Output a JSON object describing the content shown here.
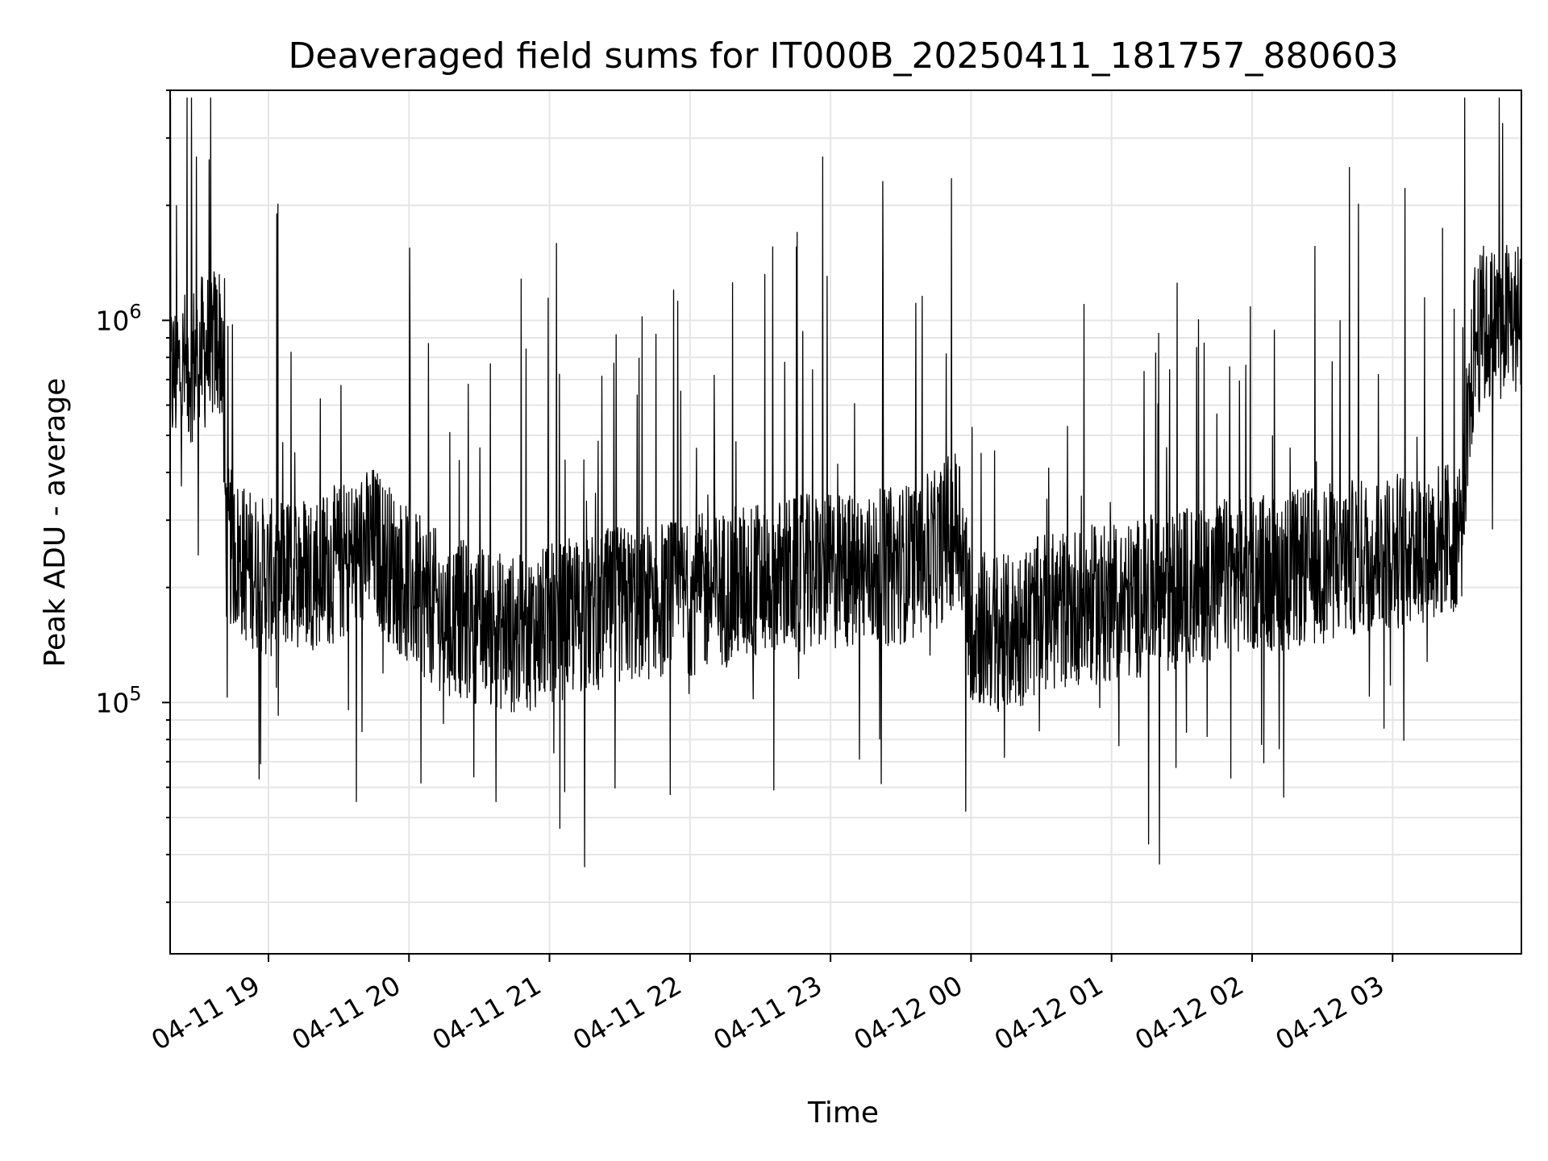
{
  "chart_data": {
    "type": "line",
    "title": "Deaveraged field sums for IT000B_20250411_181757_880603",
    "xlabel": "Time",
    "ylabel": "Peak ADU - average",
    "yscale": "log",
    "ylim": [
      22000,
      4000000
    ],
    "xlim": [
      "2025-04-11 18:18",
      "2025-04-12 03:55"
    ],
    "x_tick_labels": [
      "04-11 19",
      "04-11 20",
      "04-11 21",
      "04-11 22",
      "04-11 23",
      "04-12 00",
      "04-12 01",
      "04-12 02",
      "04-12 03"
    ],
    "y_tick_labels": [
      {
        "base": "10",
        "exp": "5"
      },
      {
        "base": "10",
        "exp": "6"
      }
    ],
    "grid": true,
    "line_color": "#000000",
    "grid_color": "#e5e5e5",
    "series": [
      {
        "x": [
          "2025-04-11 18:18",
          "2025-04-11 18:30",
          "2025-04-11 18:40",
          "2025-04-11 18:42",
          "2025-04-11 18:50",
          "2025-04-11 19:00",
          "2025-04-11 19:15",
          "2025-04-11 19:30",
          "2025-04-11 19:45",
          "2025-04-11 20:00",
          "2025-04-11 20:15",
          "2025-04-11 20:30",
          "2025-04-11 20:45",
          "2025-04-11 21:00",
          "2025-04-11 21:15",
          "2025-04-11 21:30",
          "2025-04-11 21:45",
          "2025-04-11 22:00",
          "2025-04-11 22:15",
          "2025-04-11 22:30",
          "2025-04-11 22:45",
          "2025-04-11 23:00",
          "2025-04-11 23:15",
          "2025-04-11 23:30",
          "2025-04-11 23:45",
          "2025-04-11 23:55",
          "2025-04-12 00:00",
          "2025-04-12 00:15",
          "2025-04-12 00:30",
          "2025-04-12 00:45",
          "2025-04-12 01:00",
          "2025-04-12 01:15",
          "2025-04-12 01:30",
          "2025-04-12 01:45",
          "2025-04-12 02:00",
          "2025-04-12 02:15",
          "2025-04-12 02:30",
          "2025-04-12 02:45",
          "2025-04-12 03:00",
          "2025-04-12 03:15",
          "2025-04-12 03:25",
          "2025-04-12 03:30",
          "2025-04-12 03:35",
          "2025-04-12 03:45",
          "2025-04-12 03:55"
        ],
        "values": [
          700000,
          800000,
          900000,
          260000,
          230000,
          210000,
          220000,
          230000,
          260000,
          200000,
          170000,
          160000,
          150000,
          160000,
          170000,
          180000,
          185000,
          190000,
          200000,
          210000,
          215000,
          220000,
          220000,
          230000,
          250000,
          300000,
          160000,
          150000,
          170000,
          180000,
          180000,
          190000,
          200000,
          210000,
          220000,
          220000,
          230000,
          240000,
          250000,
          260000,
          270000,
          300000,
          900000,
          1000000,
          1000000
        ]
      }
    ]
  }
}
